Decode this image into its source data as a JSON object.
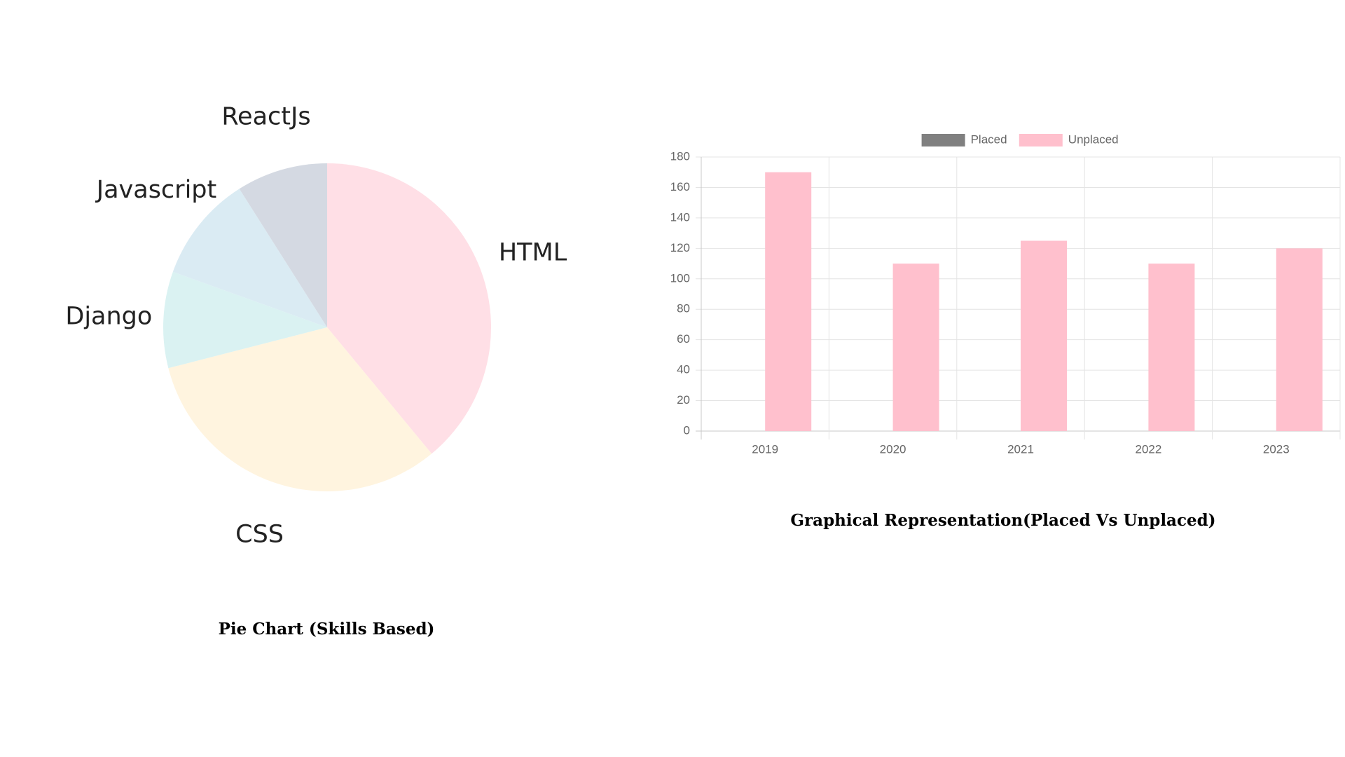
{
  "chart_data": [
    {
      "type": "pie",
      "title": "Pie Chart (Skills Based)",
      "slices": [
        {
          "label": "HTML",
          "value": 39,
          "color": "#ffdfe6"
        },
        {
          "label": "CSS",
          "value": 32,
          "color": "#fff4df"
        },
        {
          "label": "Django",
          "value": 9.5,
          "color": "#daf2f2"
        },
        {
          "label": "Javascript",
          "value": 10.5,
          "color": "#daebf3"
        },
        {
          "label": "ReactJs",
          "value": 9,
          "color": "#d4d9e2"
        }
      ]
    },
    {
      "type": "bar",
      "title": "Graphical Representation(Placed Vs Unplaced)",
      "categories": [
        "2019",
        "2020",
        "2021",
        "2022",
        "2023"
      ],
      "series": [
        {
          "name": "Placed",
          "values": [
            0,
            0,
            0,
            0,
            0
          ],
          "color": "#808080"
        },
        {
          "name": "Unplaced",
          "values": [
            170,
            110,
            125,
            110,
            120
          ],
          "color": "#ffc0cd"
        }
      ],
      "ylim": [
        0,
        180
      ],
      "yticks": [
        0,
        20,
        40,
        60,
        80,
        100,
        120,
        140,
        160,
        180
      ],
      "grid": true,
      "legend_position": "top"
    }
  ]
}
